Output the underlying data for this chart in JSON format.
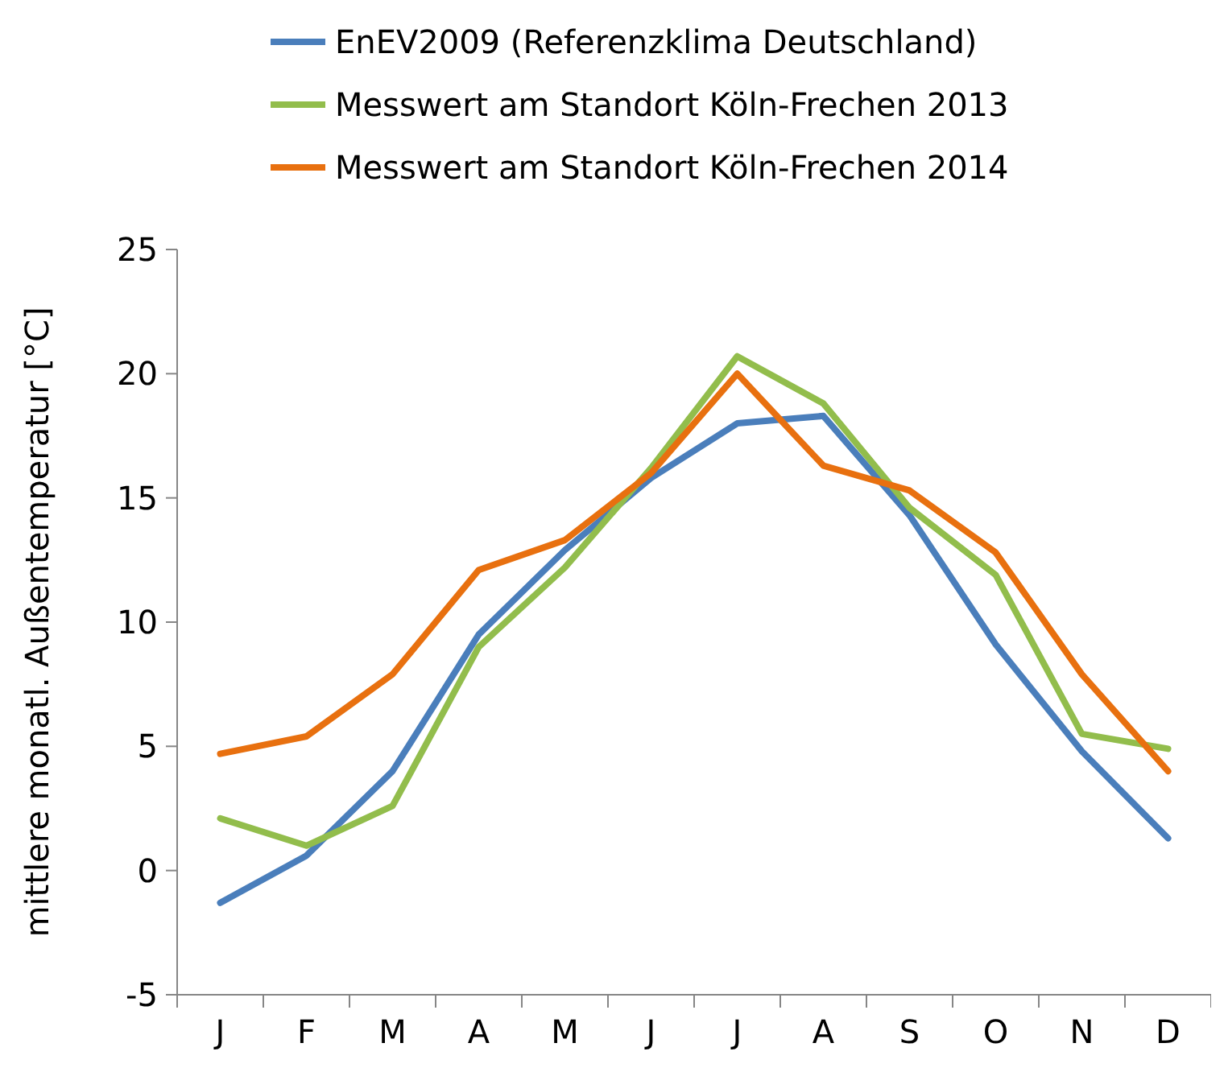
{
  "chart_data": {
    "type": "line",
    "ylabel": "mittlere monatl. Außentemperatur [°C]",
    "categories": [
      "J",
      "F",
      "M",
      "A",
      "M",
      "J",
      "J",
      "A",
      "S",
      "O",
      "N",
      "D"
    ],
    "ylim": [
      -5,
      25
    ],
    "yticks": [
      -5,
      0,
      5,
      10,
      15,
      20,
      25
    ],
    "grid": false,
    "legend": "top",
    "marker": "none",
    "line_style": "solid",
    "series": [
      {
        "name": "EnEV2009 (Referenzklima Deutschland)",
        "color": "#4a7ebb",
        "values": [
          -1.3,
          0.6,
          4.0,
          9.5,
          12.9,
          15.8,
          18.0,
          18.3,
          14.3,
          9.1,
          4.8,
          1.3
        ]
      },
      {
        "name": "Messwert am Standort Köln-Frechen 2013",
        "color": "#92bd4c",
        "values": [
          2.1,
          1.0,
          2.6,
          9.0,
          12.2,
          16.2,
          20.7,
          18.8,
          14.6,
          11.9,
          5.5,
          4.9
        ]
      },
      {
        "name": "Messwert am Standort Köln-Frechen 2014",
        "color": "#e8700f",
        "values": [
          4.7,
          5.4,
          7.9,
          12.1,
          13.3,
          16.0,
          20.0,
          16.3,
          15.3,
          12.8,
          7.9,
          4.0
        ]
      }
    ]
  }
}
